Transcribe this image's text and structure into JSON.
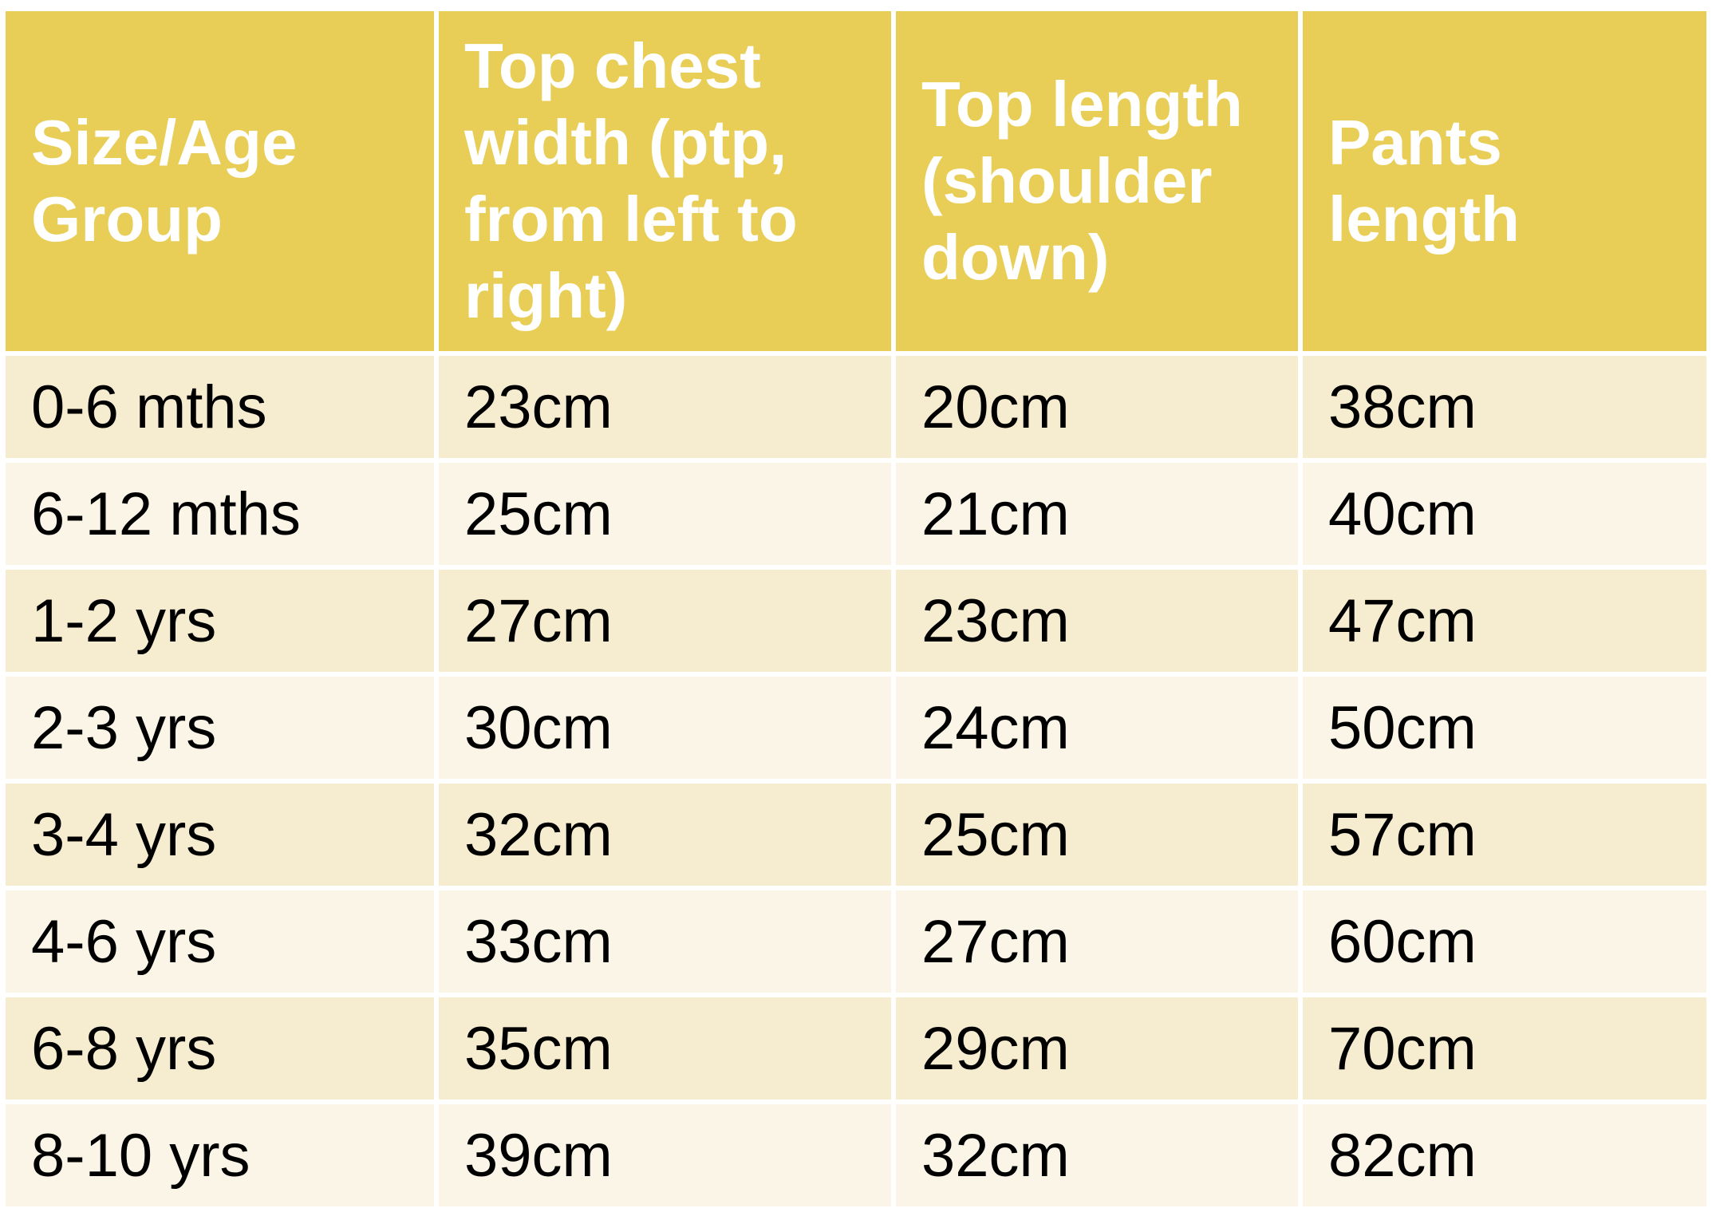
{
  "table": {
    "header": [
      "Size/Age Group",
      "Top chest width (ptp, from left to right)",
      "Top length (shoulder down)",
      "Pants length"
    ],
    "rows": [
      [
        "0-6 mths",
        "23cm",
        "20cm",
        "38cm"
      ],
      [
        "6-12 mths",
        "25cm",
        "21cm",
        "40cm"
      ],
      [
        "1-2 yrs",
        "27cm",
        "23cm",
        "47cm"
      ],
      [
        "2-3 yrs",
        "30cm",
        "24cm",
        "50cm"
      ],
      [
        "3-4 yrs",
        "32cm",
        "25cm",
        "57cm"
      ],
      [
        "4-6 yrs",
        "33cm",
        "27cm",
        "60cm"
      ],
      [
        "6-8 yrs",
        "35cm",
        "29cm",
        "70cm"
      ],
      [
        "8-10 yrs",
        "39cm",
        "32cm",
        "82cm"
      ]
    ]
  }
}
